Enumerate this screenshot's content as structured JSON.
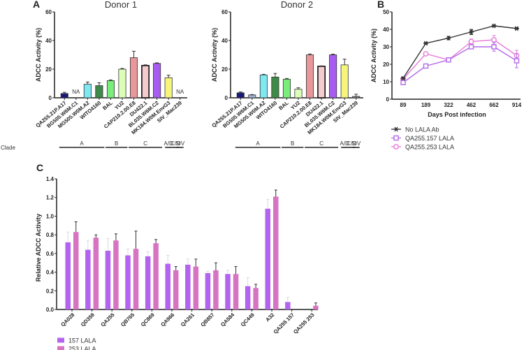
{
  "panels": {
    "a_letter": "A",
    "b_letter": "B",
    "c_letter": "C",
    "clade_label": "Clade"
  },
  "chart_data": [
    {
      "id": "A1",
      "type": "bar",
      "title": "Donor 1",
      "ylabel": "ADCC Activity (%)",
      "ylim": [
        0,
        60
      ],
      "yticks": [
        "0",
        "20",
        "40",
        "60"
      ],
      "categories": [
        "QA255.21P.A17",
        "BG505.W6M.C1",
        "MG505.W0M.A2",
        "WITO4160",
        "BAL",
        "YU2",
        "CAP210.2.00.E8",
        "DU422.1",
        "BL035.W6M.C2",
        "MK184.W0M.EnvG3",
        "SIV_Mac239"
      ],
      "values": [
        3,
        null,
        9.5,
        8.5,
        12,
        20,
        28,
        22.5,
        24,
        14,
        null
      ],
      "errors": [
        0.8,
        null,
        1.5,
        2,
        0.5,
        0.5,
        4.5,
        0.5,
        0.4,
        1.8,
        null
      ],
      "na_label": "NA",
      "colors": [
        "#1a1a7a",
        "#9fb6cf",
        "#7fe8f0",
        "#3f8a48",
        "#7aee7a",
        "#dcffb8",
        "#e8979a",
        "#f4cccc",
        "#a85cf0",
        "#f6f47a",
        "#888888"
      ],
      "clades": [
        {
          "label": "A",
          "from": 0,
          "to": 3
        },
        {
          "label": "B",
          "from": 4,
          "to": 5
        },
        {
          "label": "C",
          "from": 6,
          "to": 8
        },
        {
          "label": "A/D",
          "from": 9,
          "to": 9
        },
        {
          "label": "C/D",
          "from": 9.6,
          "to": 9.6
        },
        {
          "label": "SIV",
          "from": 10,
          "to": 10
        }
      ]
    },
    {
      "id": "A2",
      "type": "bar",
      "title": "Donor 2",
      "ylabel": "ADCC Activity (%)",
      "ylim": [
        0,
        60
      ],
      "yticks": [
        "0",
        "20",
        "40",
        "60"
      ],
      "categories": [
        "QA255.21P.A17",
        "BG505.W6M.C1",
        "MG505.W0M.A2",
        "WITO4160",
        "BAL",
        "YU2",
        "CAP210.2.00.E8",
        "DU422.1",
        "BL035.W6M.C2",
        "MK184.W0M.EnvG3",
        "SIV_Mac239"
      ],
      "values": [
        3.5,
        2,
        16,
        14.5,
        13,
        6,
        30,
        22,
        30,
        23,
        1
      ],
      "errors": [
        0.6,
        0.3,
        0.4,
        2.5,
        0.5,
        1,
        0.6,
        0.3,
        0.5,
        4,
        1.5
      ],
      "na_label": "NA",
      "colors": [
        "#1a1a7a",
        "#9fb6cf",
        "#7fe8f0",
        "#3f8a48",
        "#7aee7a",
        "#dcffb8",
        "#e8979a",
        "#f4cccc",
        "#a85cf0",
        "#f6f47a",
        "#888888"
      ],
      "clades": [
        {
          "label": "A",
          "from": 0,
          "to": 3
        },
        {
          "label": "B",
          "from": 4,
          "to": 5
        },
        {
          "label": "C",
          "from": 6,
          "to": 8
        },
        {
          "label": "A/D",
          "from": 9,
          "to": 9
        },
        {
          "label": "C/D",
          "from": 9.6,
          "to": 9.6
        },
        {
          "label": "SIV",
          "from": 10,
          "to": 10
        }
      ]
    },
    {
      "id": "B",
      "type": "line",
      "ylabel": "ADCC Activity (%)",
      "xlabel": "Days Post infection",
      "ylim": [
        0,
        50
      ],
      "yticks": [
        "0",
        "10",
        "20",
        "30",
        "40",
        "50"
      ],
      "x": [
        "89",
        "189",
        "322",
        "462",
        "662",
        "914"
      ],
      "series": [
        {
          "name": "No LALA Ab",
          "color": "#333333",
          "marker": "star",
          "values": [
            12,
            32,
            35,
            38.5,
            42,
            40.5
          ],
          "errors": [
            0.5,
            0.5,
            1,
            1.5,
            0.5,
            0.5
          ]
        },
        {
          "name": "QA255.157 LALA",
          "color": "#b36ae8",
          "marker": "square",
          "values": [
            9.5,
            19,
            22.5,
            30,
            30,
            22
          ],
          "errors": [
            1,
            0.5,
            0.5,
            1,
            2.5,
            4
          ]
        },
        {
          "name": "QA255.253 LALA",
          "color": "#e77ad8",
          "marker": "diamond",
          "values": [
            11.5,
            26,
            22.5,
            33,
            34,
            25
          ],
          "errors": [
            1,
            0.8,
            0.5,
            1.5,
            2.5,
            3
          ]
        }
      ]
    },
    {
      "id": "C",
      "type": "bar",
      "ylabel": "Relative ADCC Activity",
      "ylim": [
        0,
        1.4
      ],
      "yticks": [
        "0.0",
        "0.2",
        "0.4",
        "0.6",
        "0.8",
        "1.0",
        "1.2",
        "1.4"
      ],
      "categories": [
        "QA028",
        "QD359",
        "QA255",
        "QB765",
        "QC869",
        "QA966",
        "QA261",
        "QB857",
        "QA584",
        "QC449",
        "A32",
        "QA255 157",
        "QA255 253"
      ],
      "series": [
        {
          "name": "157 LALA",
          "color": "#b463f0",
          "values": [
            0.72,
            0.64,
            0.63,
            0.58,
            0.57,
            0.49,
            0.48,
            0.39,
            0.38,
            0.25,
            1.08,
            0.08,
            0.0
          ],
          "errors": [
            0.11,
            0.1,
            0.13,
            0.07,
            0.05,
            0.09,
            0.06,
            0.02,
            0.04,
            0.09,
            0.1,
            0.05,
            0
          ]
        },
        {
          "name": "253 LALA",
          "color": "#d774c2",
          "values": [
            0.83,
            0.77,
            0.74,
            0.65,
            0.71,
            0.42,
            0.46,
            0.42,
            0.38,
            0.23,
            1.21,
            0.0,
            0.04
          ],
          "errors": [
            0.11,
            0.03,
            0.07,
            0.19,
            0.04,
            0.04,
            0.08,
            0.08,
            0.08,
            0.04,
            0.07,
            0,
            0.03
          ]
        }
      ]
    }
  ]
}
